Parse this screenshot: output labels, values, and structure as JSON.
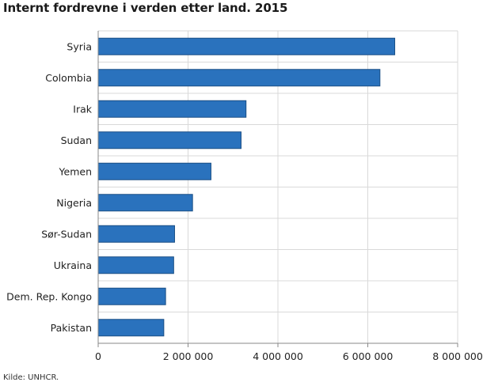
{
  "title": "Internt fordrevne i verden etter land. 2015",
  "source": "Kilde: UNHCR.",
  "colors": {
    "bar": "#2a72bd",
    "bar_stroke": "#1a4f85",
    "grid": "#d9d9d9",
    "axis": "#888888"
  },
  "chart_data": {
    "type": "bar",
    "orientation": "horizontal",
    "title": "Internt fordrevne i verden etter land. 2015",
    "categories": [
      "Syria",
      "Colombia",
      "Irak",
      "Sudan",
      "Yemen",
      "Nigeria",
      "Sør-Sudan",
      "Ukraina",
      "Dem. Rep. Kongo",
      "Pakistan"
    ],
    "values": [
      6600000,
      6270000,
      3290000,
      3180000,
      2510000,
      2100000,
      1700000,
      1680000,
      1500000,
      1460000
    ],
    "xlim": [
      0,
      8000000
    ],
    "ticks": [
      0,
      2000000,
      4000000,
      6000000,
      8000000
    ],
    "tick_labels": [
      "0",
      "2 000 000",
      "4 000 000",
      "6 000 000",
      "8 000 000"
    ],
    "grid": true,
    "xlabel": "",
    "ylabel": ""
  }
}
